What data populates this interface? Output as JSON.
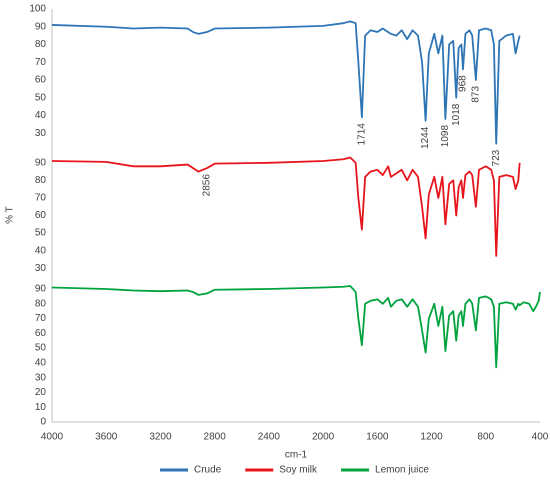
{
  "chart_data": {
    "type": "line",
    "xlabel": "cm-1",
    "ylabel": "% T",
    "xlim": [
      4000,
      400
    ],
    "xticks": [
      4000,
      3600,
      3200,
      2800,
      2400,
      2000,
      1600,
      1200,
      800,
      400
    ],
    "series": [
      {
        "name": "Crude",
        "color": "#2e75b6",
        "ylim": [
          25,
          100
        ],
        "yticks": [
          100,
          90,
          80,
          70,
          60,
          50,
          40,
          30
        ],
        "x": [
          4000,
          3600,
          3400,
          3200,
          3000,
          2960,
          2920,
          2856,
          2800,
          2400,
          2000,
          1850,
          1800,
          1760,
          1740,
          1714,
          1690,
          1650,
          1600,
          1560,
          1500,
          1460,
          1420,
          1380,
          1340,
          1300,
          1270,
          1244,
          1220,
          1180,
          1150,
          1120,
          1098,
          1070,
          1040,
          1018,
          1000,
          980,
          968,
          950,
          920,
          900,
          873,
          850,
          800,
          760,
          740,
          723,
          700,
          650,
          600,
          580,
          560,
          550
        ],
        "values": [
          91,
          90,
          89,
          89.5,
          89,
          87,
          86,
          87,
          89,
          89.5,
          90.5,
          92,
          93,
          92,
          70,
          39,
          85,
          88,
          87,
          89,
          86,
          85,
          88,
          83,
          88,
          85,
          70,
          37,
          75,
          86,
          75,
          85,
          38,
          80,
          82,
          50,
          78,
          80,
          66,
          86,
          88,
          85,
          60,
          88,
          89,
          88,
          80,
          24,
          82,
          85,
          86,
          75,
          82,
          85
        ]
      },
      {
        "name": "Soy milk",
        "color": "#e8141b",
        "ylim": [
          25,
          95
        ],
        "yticks": [
          90,
          80,
          70,
          60,
          50,
          40,
          30
        ],
        "x": [
          4000,
          3600,
          3400,
          3200,
          3000,
          2960,
          2920,
          2856,
          2800,
          2400,
          2000,
          1850,
          1800,
          1760,
          1740,
          1714,
          1690,
          1650,
          1600,
          1560,
          1520,
          1500,
          1460,
          1420,
          1380,
          1340,
          1300,
          1270,
          1244,
          1220,
          1180,
          1150,
          1120,
          1098,
          1070,
          1040,
          1018,
          1000,
          980,
          968,
          950,
          920,
          900,
          873,
          850,
          800,
          760,
          740,
          723,
          700,
          650,
          600,
          580,
          560,
          550
        ],
        "values": [
          91,
          90.5,
          88,
          88,
          89,
          87,
          85,
          87,
          89.5,
          90,
          91,
          92,
          93,
          90,
          70,
          52,
          82,
          85,
          86,
          83,
          88,
          82,
          84,
          86,
          80,
          86,
          82,
          65,
          47,
          72,
          82,
          70,
          82,
          55,
          78,
          80,
          60,
          76,
          80,
          70,
          83,
          85,
          83,
          65,
          86,
          88,
          86,
          80,
          37,
          82,
          83,
          82,
          75,
          80,
          90
        ]
      },
      {
        "name": "Lemon juice",
        "color": "#00a33d",
        "ylim": [
          0,
          95
        ],
        "yticks": [
          90,
          80,
          70,
          60,
          50,
          40,
          30,
          20,
          10,
          0
        ],
        "x": [
          4000,
          3600,
          3400,
          3200,
          3000,
          2960,
          2920,
          2856,
          2800,
          2400,
          2000,
          1850,
          1800,
          1760,
          1740,
          1714,
          1690,
          1650,
          1600,
          1560,
          1520,
          1500,
          1460,
          1420,
          1380,
          1340,
          1300,
          1270,
          1244,
          1220,
          1180,
          1150,
          1120,
          1098,
          1070,
          1040,
          1018,
          1000,
          980,
          968,
          950,
          920,
          900,
          873,
          850,
          800,
          760,
          740,
          723,
          700,
          650,
          600,
          580,
          560,
          550,
          520,
          480,
          450,
          430,
          410,
          400
        ],
        "values": [
          91,
          90,
          89,
          88.5,
          89,
          88,
          86,
          87,
          89.5,
          90,
          91,
          91.5,
          92,
          88,
          70,
          52,
          80,
          82,
          83,
          80,
          84,
          78,
          82,
          83,
          78,
          83,
          78,
          62,
          47,
          70,
          80,
          65,
          78,
          48,
          72,
          75,
          55,
          72,
          75,
          65,
          80,
          83,
          80,
          62,
          84,
          85,
          83,
          78,
          37,
          80,
          81,
          80,
          76,
          80,
          79,
          81,
          80,
          75,
          78,
          82,
          88
        ]
      }
    ],
    "annotations": [
      {
        "series": 0,
        "x": 1714
      },
      {
        "series": 0,
        "x": 1244
      },
      {
        "series": 0,
        "x": 1098
      },
      {
        "series": 0,
        "x": 1018
      },
      {
        "series": 0,
        "x": 968
      },
      {
        "series": 0,
        "x": 873
      },
      {
        "series": 0,
        "x": 723
      },
      {
        "series": 1,
        "x": 2856
      }
    ]
  }
}
